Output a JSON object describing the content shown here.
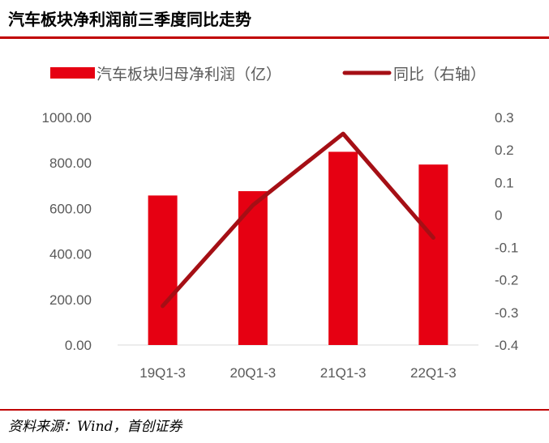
{
  "title": "汽车板块净利润前三季度同比走势",
  "source": "资料来源：Wind，首创证券",
  "colors": {
    "bar": "#e60012",
    "line": "#a50f15",
    "rule": "#c00000"
  },
  "chart_data": {
    "type": "bar+line",
    "categories": [
      "19Q1-3",
      "20Q1-3",
      "21Q1-3",
      "22Q1-3"
    ],
    "series": [
      {
        "name": "汽车板块归母净利润（亿）",
        "type": "bar",
        "axis": "left",
        "values": [
          657,
          676,
          849,
          793
        ]
      },
      {
        "name": "同比（右轴）",
        "type": "line",
        "axis": "right",
        "values": [
          -0.28,
          0.03,
          0.25,
          -0.07
        ]
      }
    ],
    "y_left": {
      "ylim": [
        0,
        1000
      ],
      "ticks": [
        "1000.00",
        "800.00",
        "600.00",
        "400.00",
        "200.00",
        "0.00"
      ]
    },
    "y_right": {
      "ylim": [
        -0.4,
        0.3
      ],
      "ticks": [
        "0.3",
        "0.2",
        "0.1",
        "0",
        "-0.1",
        "-0.2",
        "-0.3",
        "-0.4"
      ]
    },
    "legend": "top",
    "grid": false
  }
}
